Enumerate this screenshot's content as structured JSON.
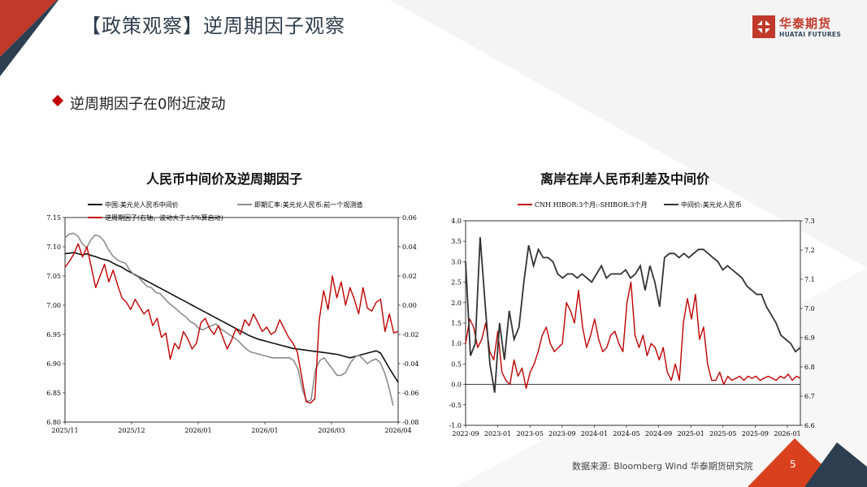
{
  "header": {
    "title": "【政策观察】逆周期因子观察"
  },
  "logo": {
    "cn": "华泰期货",
    "en": "HUATAI FUTURES",
    "color": "#c0392b"
  },
  "bullet": {
    "text": "逆周期因子在0附近波动"
  },
  "footer": {
    "source": "数据来源:  Bloomberg Wind 华泰期货研究院",
    "page": "5"
  },
  "chart_data": [
    {
      "type": "line",
      "title": "人民币中间价及逆周期因子",
      "x_ticks": [
        "2025/11",
        "2025/12",
        "2026/01",
        "2026/01",
        "2026/03",
        "2026/04"
      ],
      "y_left": {
        "range": [
          6.8,
          7.15
        ],
        "ticks": [
          "6.80",
          "6.85",
          "6.90",
          "6.95",
          "7.00",
          "7.05",
          "7.10",
          "7.15"
        ]
      },
      "y_right": {
        "range": [
          -0.08,
          0.06
        ],
        "ticks": [
          "-0.08",
          "-0.06",
          "-0.04",
          "-0.02",
          "0.00",
          "0.02",
          "0.04",
          "0.06"
        ]
      },
      "series": [
        {
          "name": "中国:美元兑人民币中间价",
          "axis": "left",
          "color": "#111111",
          "values": [
            7.088,
            7.089,
            7.09,
            7.088,
            7.086,
            7.088,
            7.085,
            7.083,
            7.08,
            7.078,
            7.076,
            7.072,
            7.068,
            7.065,
            7.06,
            7.056,
            7.052,
            7.048,
            7.044,
            7.04,
            7.036,
            7.032,
            7.028,
            7.024,
            7.02,
            7.016,
            7.012,
            7.008,
            7.004,
            7.0,
            6.996,
            6.992,
            6.988,
            6.984,
            6.98,
            6.976,
            6.972,
            6.968,
            6.964,
            6.96,
            6.956,
            6.952,
            6.948,
            6.945,
            6.942,
            6.94,
            6.938,
            6.936,
            6.934,
            6.932,
            6.93,
            6.928,
            6.926,
            6.925,
            6.924,
            6.923,
            6.922,
            6.921,
            6.92,
            6.919,
            6.918,
            6.917,
            6.916,
            6.914,
            6.912,
            6.91,
            6.912,
            6.914,
            6.916,
            6.918,
            6.92,
            6.922,
            6.918,
            6.905,
            6.892,
            6.88,
            6.868
          ]
        },
        {
          "name": "即期汇率:美元兑人民币:前一个观测值",
          "axis": "left",
          "color": "#8c8c8c",
          "values": [
            7.115,
            7.122,
            7.123,
            7.118,
            7.105,
            7.098,
            7.112,
            7.12,
            7.118,
            7.11,
            7.096,
            7.085,
            7.078,
            7.074,
            7.072,
            7.06,
            7.052,
            7.048,
            7.04,
            7.032,
            7.03,
            7.022,
            7.02,
            7.012,
            7.004,
            6.998,
            6.992,
            6.985,
            6.98,
            6.972,
            6.968,
            6.96,
            6.958,
            6.962,
            6.965,
            6.968,
            6.96,
            6.955,
            6.95,
            6.945,
            6.94,
            6.932,
            6.925,
            6.92,
            6.918,
            6.916,
            6.914,
            6.912,
            6.91,
            6.91,
            6.91,
            6.91,
            6.91,
            6.905,
            6.89,
            6.855,
            6.835,
            6.838,
            6.89,
            6.905,
            6.91,
            6.9,
            6.89,
            6.88,
            6.88,
            6.885,
            6.9,
            6.91,
            6.915,
            6.908,
            6.9,
            6.905,
            6.908,
            6.902,
            6.885,
            6.86,
            6.828
          ]
        },
        {
          "name": "逆周期因子(右轴，波动大于±5%算启动)",
          "axis": "right",
          "color": "#c00000",
          "values": [
            0.026,
            0.03,
            0.035,
            0.042,
            0.033,
            0.04,
            0.026,
            0.012,
            0.02,
            0.028,
            0.016,
            0.024,
            0.014,
            0.005,
            0.002,
            -0.003,
            0.004,
            -0.001,
            -0.006,
            -0.003,
            -0.014,
            -0.009,
            -0.022,
            -0.019,
            -0.037,
            -0.026,
            -0.03,
            -0.018,
            -0.023,
            -0.03,
            -0.026,
            -0.012,
            -0.009,
            -0.016,
            -0.02,
            -0.014,
            -0.022,
            -0.03,
            -0.024,
            -0.016,
            -0.02,
            -0.01,
            -0.014,
            -0.006,
            -0.012,
            -0.018,
            -0.015,
            -0.02,
            -0.018,
            -0.01,
            -0.016,
            -0.022,
            -0.026,
            -0.032,
            -0.049,
            -0.066,
            -0.067,
            -0.064,
            -0.01,
            0.01,
            -0.003,
            0.02,
            0.005,
            0.016,
            0.0,
            0.012,
            0.004,
            -0.006,
            0.012,
            -0.002,
            -0.004,
            0.002,
            0.004,
            -0.018,
            -0.006,
            -0.019,
            -0.018
          ]
        }
      ]
    },
    {
      "type": "line",
      "title": "离岸在岸人民币利差及中间价",
      "x_ticks": [
        "2022-09",
        "2023-01",
        "2023-05",
        "2023-09",
        "2024-01",
        "2024-05",
        "2024-09",
        "2025-01",
        "2025-05",
        "2025-09",
        "2026-01"
      ],
      "y_left": {
        "range": [
          -1.0,
          4.0
        ],
        "ticks": [
          "-1.0",
          "-0.5",
          "0.0",
          "0.5",
          "1.0",
          "1.5",
          "2.0",
          "2.5",
          "3.0",
          "3.5",
          "4.0"
        ]
      },
      "y_right": {
        "range": [
          6.6,
          7.3
        ],
        "ticks": [
          "6.6",
          "6.7",
          "6.8",
          "6.9",
          "7.0",
          "7.1",
          "7.2",
          "7.3"
        ]
      },
      "series": [
        {
          "name": "CNH HIBOR:3个月:-SHIBOR:3个月",
          "axis": "left",
          "color": "#c00000",
          "values": [
            1.0,
            1.6,
            1.4,
            0.9,
            1.1,
            1.5,
            0.8,
            0.6,
            1.3,
            0.3,
            0.1,
            0.0,
            0.6,
            0.2,
            0.4,
            -0.1,
            0.3,
            0.5,
            0.8,
            1.2,
            1.4,
            1.0,
            0.8,
            0.9,
            1.0,
            2.0,
            1.8,
            1.5,
            2.3,
            1.4,
            0.9,
            1.2,
            1.6,
            1.1,
            0.8,
            0.9,
            1.2,
            1.3,
            1.0,
            0.8,
            2.0,
            2.5,
            1.2,
            0.9,
            1.2,
            0.7,
            1.0,
            0.9,
            0.6,
            0.9,
            0.3,
            0.1,
            0.5,
            0.1,
            1.5,
            2.1,
            1.6,
            2.2,
            1.1,
            1.4,
            0.5,
            0.1,
            0.1,
            0.3,
            0.0,
            0.2,
            0.1,
            0.15,
            0.2,
            0.1,
            0.2,
            0.15,
            0.2,
            0.1,
            0.15,
            0.2,
            0.15,
            0.1,
            0.2,
            0.15,
            0.25,
            0.1,
            0.2,
            0.15
          ]
        },
        {
          "name": "中间价:美元兑人民币",
          "axis": "left",
          "color": "#333333",
          "values": [
            3.0,
            0.7,
            1.0,
            3.6,
            2.0,
            0.5,
            -0.2,
            1.5,
            0.6,
            1.8,
            1.1,
            1.4,
            2.5,
            3.4,
            2.9,
            3.3,
            3.1,
            3.1,
            3.0,
            2.7,
            2.6,
            2.7,
            2.7,
            2.6,
            2.7,
            2.6,
            2.5,
            2.7,
            2.9,
            2.6,
            2.7,
            2.7,
            2.7,
            2.8,
            2.6,
            2.7,
            2.9,
            2.3,
            2.9,
            2.5,
            1.9,
            3.1,
            3.2,
            3.2,
            3.1,
            3.2,
            3.1,
            3.2,
            3.3,
            3.3,
            3.2,
            3.1,
            3.0,
            2.8,
            2.9,
            2.8,
            2.7,
            2.6,
            2.4,
            2.3,
            2.2,
            2.2,
            1.9,
            1.7,
            1.5,
            1.2,
            1.1,
            1.0,
            0.8,
            0.9
          ]
        }
      ]
    }
  ]
}
